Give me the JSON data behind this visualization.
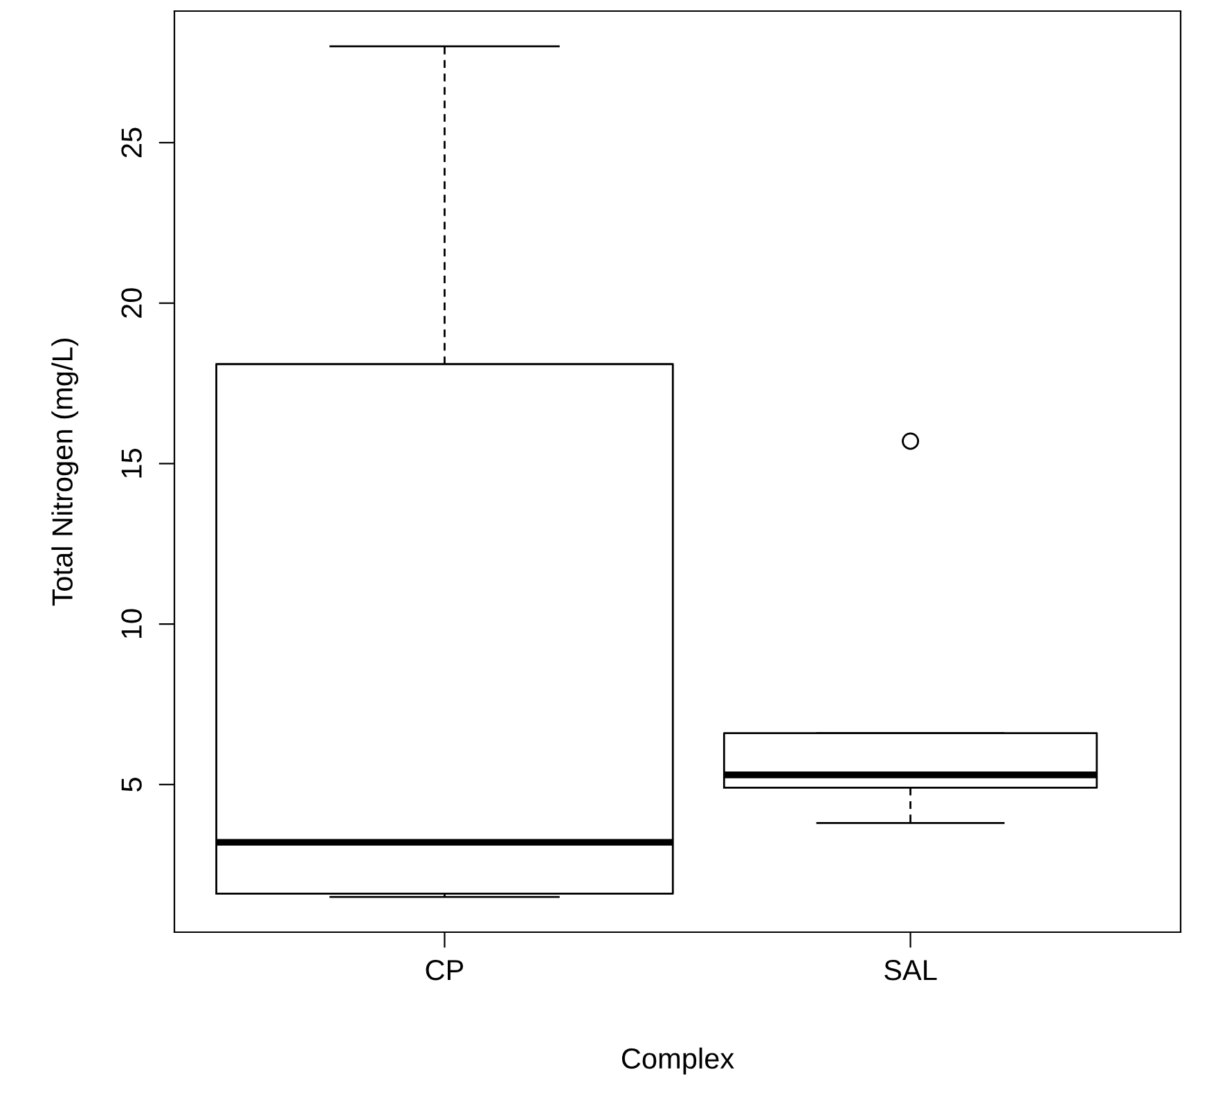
{
  "chart_data": {
    "type": "box",
    "xlabel": "Complex",
    "ylabel": "Total Nitrogen (mg/L)",
    "categories": [
      "CP",
      "SAL"
    ],
    "boxes": [
      {
        "low": 1.5,
        "q1": 1.6,
        "median": 3.2,
        "q3": 18.1,
        "high": 28.0
      },
      {
        "low": 3.8,
        "q1": 4.9,
        "median": 5.3,
        "q3": 6.6,
        "high": 6.6,
        "outliers": [
          15.7
        ]
      }
    ],
    "ylim": [
      0.4,
      29.1
    ],
    "yticks": [
      5,
      10,
      15,
      20,
      25
    ],
    "grid": false
  }
}
